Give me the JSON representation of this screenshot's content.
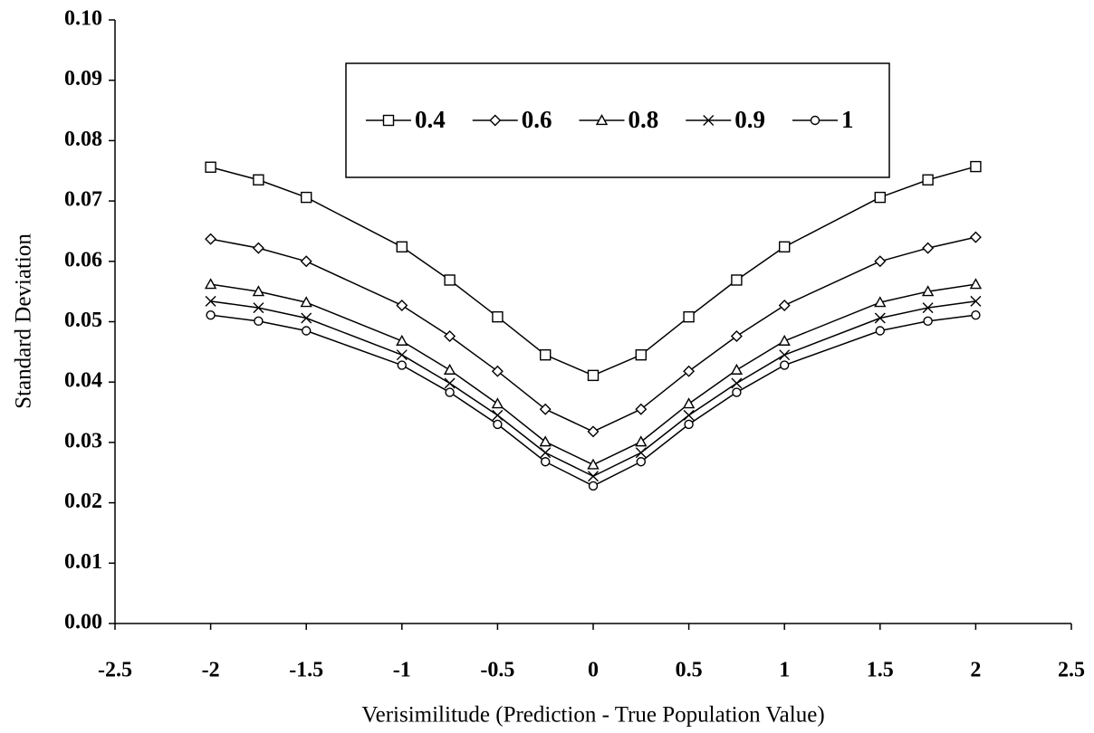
{
  "chart_data": {
    "type": "line",
    "x_label": "Verisimilitude (Prediction - True Population Value)",
    "y_label": "Standard Deviation",
    "x": [
      -2,
      -1.75,
      -1.5,
      -1,
      -0.75,
      -0.5,
      -0.25,
      0,
      0.25,
      0.5,
      0.75,
      1,
      1.5,
      1.75,
      2
    ],
    "series": [
      {
        "name": "0.4",
        "color": "#000000",
        "marker": "square",
        "values": [
          0.0756,
          0.0735,
          0.0706,
          0.0624,
          0.0569,
          0.0508,
          0.0445,
          0.0411,
          0.0445,
          0.0508,
          0.0569,
          0.0624,
          0.0706,
          0.0735,
          0.0757
        ]
      },
      {
        "name": "0.6",
        "color": "#000000",
        "marker": "diamond",
        "values": [
          0.0637,
          0.0622,
          0.06,
          0.0527,
          0.0476,
          0.0418,
          0.0355,
          0.0318,
          0.0355,
          0.0418,
          0.0476,
          0.0527,
          0.06,
          0.0622,
          0.064
        ]
      },
      {
        "name": "0.8",
        "color": "#000000",
        "marker": "triangle",
        "values": [
          0.0562,
          0.055,
          0.0532,
          0.0468,
          0.042,
          0.0364,
          0.0301,
          0.0263,
          0.0301,
          0.0364,
          0.042,
          0.0468,
          0.0532,
          0.055,
          0.0562
        ]
      },
      {
        "name": "0.9",
        "color": "#000000",
        "marker": "x",
        "values": [
          0.0534,
          0.0523,
          0.0506,
          0.0445,
          0.0398,
          0.0345,
          0.0283,
          0.0244,
          0.0283,
          0.0345,
          0.0398,
          0.0445,
          0.0506,
          0.0523,
          0.0534
        ]
      },
      {
        "name": "1",
        "color": "#000000",
        "marker": "circle",
        "values": [
          0.0511,
          0.0501,
          0.0485,
          0.0428,
          0.0383,
          0.033,
          0.0268,
          0.0228,
          0.0268,
          0.033,
          0.0383,
          0.0428,
          0.0485,
          0.0501,
          0.0511
        ]
      }
    ],
    "xlim": [
      -2.5,
      2.5
    ],
    "xticks": [
      -2.5,
      -2,
      -1.5,
      -1,
      -0.5,
      0,
      0.5,
      1,
      1.5,
      2,
      2.5
    ],
    "ylim": [
      0,
      0.1
    ],
    "yticks": [
      {
        "value": 0,
        "label": "0.00"
      },
      {
        "value": 0.01,
        "label": "0.01"
      },
      {
        "value": 0.02,
        "label": "0.02"
      },
      {
        "value": 0.03,
        "label": "0.03"
      },
      {
        "value": 0.04,
        "label": "0.04"
      },
      {
        "value": 0.05,
        "label": "0.05"
      },
      {
        "value": 0.06,
        "label": "0.06"
      },
      {
        "value": 0.07,
        "label": "0.07"
      },
      {
        "value": 0.08,
        "label": "0.08"
      },
      {
        "value": 0.09,
        "label": "0.09"
      },
      {
        "value": 0.1,
        "label": "0.10"
      }
    ],
    "grid": false,
    "legend_position": "top"
  }
}
